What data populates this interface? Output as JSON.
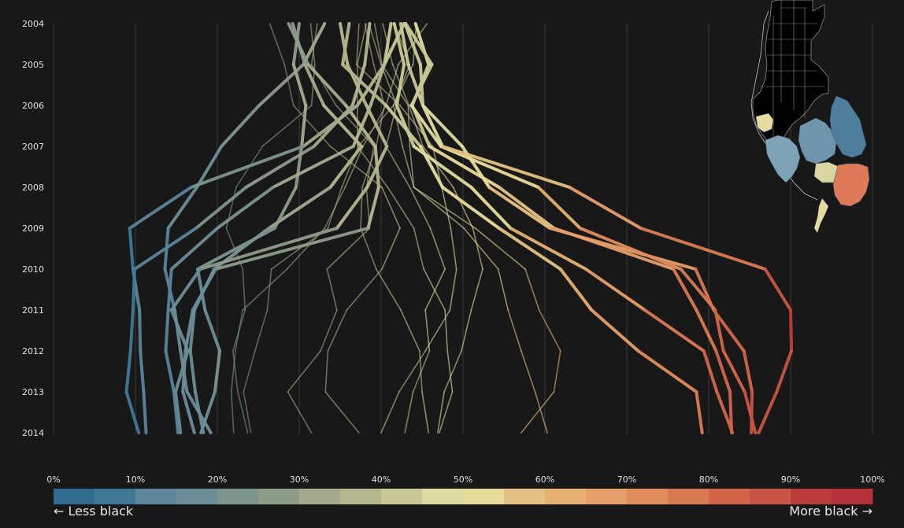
{
  "chart_data": {
    "type": "line",
    "title": "",
    "xlabel": "",
    "ylabel": "",
    "years": [
      2004,
      2005,
      2006,
      2007,
      2008,
      2009,
      2010,
      2011,
      2012,
      2013,
      2014
    ],
    "x_ticks": [
      "0%",
      "10%",
      "20%",
      "30%",
      "40%",
      "50%",
      "60%",
      "70%",
      "80%",
      "90%",
      "100%"
    ],
    "xlim": [
      0,
      100
    ],
    "grid": true,
    "series": [
      {
        "values": [
          44.2,
          45.8,
          43.8,
          45.9,
          54.4,
          61.1,
          75.7,
          78.5,
          80.9,
          82.6,
          82.8
        ]
      },
      {
        "values": [
          43.0,
          46.2,
          43.7,
          47.3,
          59.2,
          64.3,
          76.6,
          80.8,
          81.8,
          84.4,
          85.7
        ]
      },
      {
        "values": [
          42.9,
          44.8,
          45.1,
          47.5,
          63.0,
          71.7,
          86.9,
          90.0,
          90.1,
          88.3,
          86.1
        ]
      },
      {
        "values": [
          42.4,
          43.3,
          45.1,
          49.9,
          53.2,
          60.6,
          78.4,
          80.6,
          84.3,
          85.3,
          85.2
        ]
      },
      {
        "values": [
          41.6,
          42.8,
          41.9,
          44.0,
          51.0,
          55.8,
          65.0,
          72.2,
          79.4,
          81.0,
          82.9
        ]
      },
      {
        "values": [
          36.1,
          35.3,
          40.6,
          44.8,
          47.5,
          54.4,
          61.9,
          65.7,
          71.4,
          78.5,
          79.2
        ]
      },
      {
        "values": [
          35.0,
          35.9,
          38.2,
          40.7,
          38.3,
          34.6,
          17.9,
          14.4,
          16.4,
          14.9,
          15.5
        ]
      },
      {
        "values": [
          32.2,
          31.5,
          34.5,
          39.1,
          38.2,
          38.6,
          33.4,
          34.6,
          32.6,
          28.6,
          31.5
        ]
      },
      {
        "values": [
          29.2,
          30.7,
          33.0,
          37.6,
          33.8,
          26.3,
          19.6,
          17.2,
          16.7,
          17.3,
          18.3
        ]
      },
      {
        "values": [
          28.7,
          31.1,
          35.7,
          39.3,
          39.7,
          38.4,
          19.8,
          17.0,
          16.1,
          15.8,
          17.2
        ]
      },
      {
        "values": [
          26.4,
          28.2,
          29.3,
          33.8,
          40.1,
          42.3,
          40.1,
          35.8,
          33.5,
          33.2,
          37.3
        ]
      },
      {
        "values": [
          45.6,
          42.1,
          40.6,
          37.8,
          35.6,
          33.1,
          28.5,
          23.1,
          22.2,
          21.7,
          22.0
        ]
      },
      {
        "values": [
          44.3,
          43.9,
          41.5,
          37.2,
          35.2,
          33.5,
          26.6,
          26.1,
          24.6,
          23.2,
          24.1
        ]
      },
      {
        "values": [
          42.8,
          40.4,
          38.7,
          36.6,
          26.8,
          20.0,
          14.4,
          14.0,
          13.7,
          14.7,
          15.2
        ]
      },
      {
        "values": [
          41.2,
          40.4,
          37.1,
          30.5,
          16.8,
          9.3,
          9.7,
          10.5,
          10.6,
          11.0,
          11.3
        ]
      },
      {
        "values": [
          38.6,
          38.0,
          36.5,
          31.8,
          23.5,
          17.4,
          9.9,
          9.7,
          9.4,
          8.9,
          10.4
        ]
      },
      {
        "values": [
          31.4,
          31.9,
          31.5,
          25.5,
          22.3,
          21.1,
          23.1,
          23.4,
          21.9,
          22.5,
          23.7
        ]
      },
      {
        "values": [
          33.1,
          30.5,
          25.1,
          20.5,
          17.5,
          14.0,
          13.6,
          14.8,
          15.5,
          16.3,
          19.2
        ]
      },
      {
        "values": [
          30.0,
          29.3,
          30.8,
          30.3,
          29.6,
          27.0,
          17.6,
          18.5,
          20.3,
          19.7,
          18.0
        ]
      },
      {
        "values": [
          38.0,
          39.1,
          40.4,
          39.4,
          37.7,
          37.5,
          39.4,
          42.4,
          44.7,
          45.0,
          45.8
        ]
      },
      {
        "values": [
          38.2,
          37.1,
          37.1,
          37.1,
          40.8,
          44.0,
          45.2,
          47.8,
          48.1,
          48.7,
          47.1
        ]
      },
      {
        "values": [
          38.5,
          40.0,
          41.9,
          40.6,
          43.5,
          46.0,
          47.8,
          45.4,
          45.9,
          43.9,
          42.9
        ]
      },
      {
        "values": [
          39.2,
          40.1,
          43.3,
          43.5,
          44.0,
          50.1,
          54.3,
          55.5,
          57.1,
          58.8,
          60.3
        ]
      },
      {
        "values": [
          40.2,
          41.4,
          43.4,
          45.1,
          48.8,
          51.2,
          52.4,
          51.0,
          49.8,
          47.7,
          46.9
        ]
      },
      {
        "values": [
          41.6,
          43.5,
          41.5,
          42.6,
          44.0,
          51.5,
          57.6,
          59.3,
          61.9,
          61.1,
          57.1
        ]
      },
      {
        "values": [
          37.3,
          37.0,
          42.3,
          46.3,
          47.4,
          48.5,
          49.2,
          48.4,
          45.4,
          42.2,
          40.0
        ]
      }
    ],
    "colorscale": [
      "#2e6b8e",
      "#3f7896",
      "#5a859b",
      "#6b8e98",
      "#7c958f",
      "#8e9c8a",
      "#a4ab8d",
      "#b5b68e",
      "#c8c897",
      "#dddca0",
      "#e9dc9a",
      "#e5c283",
      "#e6b073",
      "#e69f69",
      "#e08c5d",
      "#da7a52",
      "#d36649",
      "#c85545",
      "#bd3c3c",
      "#b63037"
    ],
    "legend": {
      "left": "← Less black",
      "right": "More black →"
    }
  }
}
